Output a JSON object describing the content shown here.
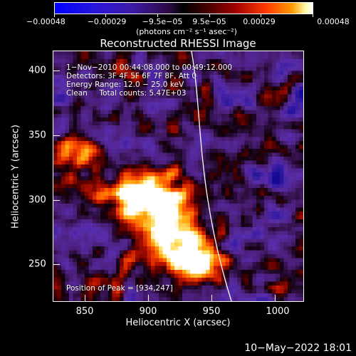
{
  "colorbar": {
    "tick_labels": [
      "−0.00048",
      "−0.00029",
      "−9.5e−05",
      "9.5e−05",
      "0.00029",
      "0.00048"
    ],
    "units": "(photons cm⁻² s⁻¹ asec⁻²)"
  },
  "plot": {
    "title": "Reconstructed RHESSI Image",
    "info_lines": [
      "1−Nov−2010 00:44:08.000 to 00:49:12.000",
      "Detectors: 3F 4F 5F 6F 7F 8F, Att 0",
      "Energy Range: 12.0 − 25.0 keV",
      "Clean     Total counts: 5.47E+03"
    ],
    "peak_label": "Position of Peak = [934,247]",
    "x_axis": {
      "label": "Heliocentric X (arcsec)",
      "ticks": [
        "850",
        "900",
        "950",
        "1000"
      ]
    },
    "y_axis": {
      "label": "Heliocentric Y (arcsec)",
      "ticks": [
        "250",
        "300",
        "350",
        "400"
      ]
    }
  },
  "footer": {
    "timestamp": "10−May−2022 18:01"
  },
  "colors": {
    "background": "#000000",
    "limb_line": "#ffffff"
  }
}
